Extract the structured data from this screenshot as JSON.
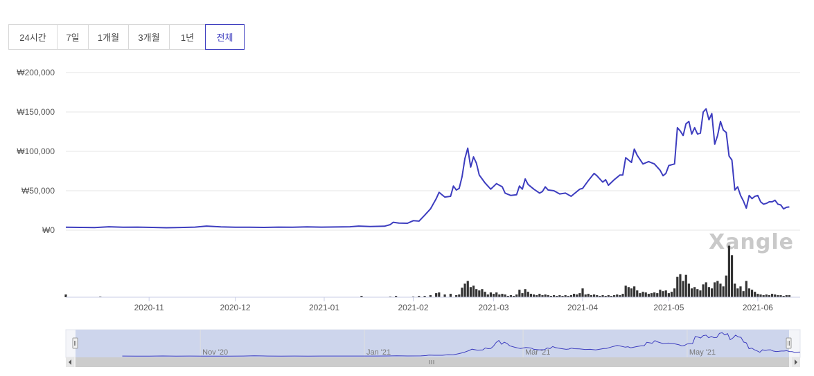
{
  "range_tabs": [
    {
      "label": "24시간",
      "active": false
    },
    {
      "label": "7일",
      "active": false
    },
    {
      "label": "1개월",
      "active": false
    },
    {
      "label": "3개월",
      "active": false
    },
    {
      "label": "1년",
      "active": false
    },
    {
      "label": "전체",
      "active": true
    }
  ],
  "watermark": "Xangle",
  "colors": {
    "price_line": "#3d3dbf",
    "volume_bar": "#333333",
    "navigator_fill": "#cdd5ec",
    "navigator_line": "#3d3dbf",
    "accent": "#3d3dbf"
  },
  "chart_data": {
    "type": "line",
    "y_axis": {
      "ticks": [
        0,
        50000,
        100000,
        150000,
        200000
      ],
      "tick_labels": [
        "₩0",
        "₩50,000",
        "₩100,000",
        "₩150,000",
        "₩200,000"
      ],
      "ylim": [
        0,
        200000
      ]
    },
    "x_axis": {
      "type": "date",
      "range": [
        "2020-10-03",
        "2021-06-09"
      ],
      "tick_labels": [
        "2020-11",
        "2020-12",
        "2021-01",
        "2021-02",
        "2021-03",
        "2021-04",
        "2021-05",
        "2021-06"
      ],
      "tick_dates": [
        "2020-11-01",
        "2020-12-01",
        "2021-01-01",
        "2021-02-01",
        "2021-03-01",
        "2021-04-01",
        "2021-05-01",
        "2021-06-01"
      ]
    },
    "series": [
      {
        "kind": "price",
        "points": [
          [
            "2020-10-03",
            3800
          ],
          [
            "2020-10-08",
            3500
          ],
          [
            "2020-10-13",
            3300
          ],
          [
            "2020-10-18",
            4300
          ],
          [
            "2020-10-23",
            3700
          ],
          [
            "2020-10-28",
            3900
          ],
          [
            "2020-11-02",
            3500
          ],
          [
            "2020-11-07",
            3100
          ],
          [
            "2020-11-12",
            3400
          ],
          [
            "2020-11-17",
            3900
          ],
          [
            "2020-11-21",
            5200
          ],
          [
            "2020-11-26",
            4100
          ],
          [
            "2020-12-01",
            3700
          ],
          [
            "2020-12-06",
            3800
          ],
          [
            "2020-12-11",
            3500
          ],
          [
            "2020-12-16",
            3900
          ],
          [
            "2020-12-21",
            3800
          ],
          [
            "2020-12-26",
            4100
          ],
          [
            "2020-12-31",
            3900
          ],
          [
            "2021-01-05",
            4000
          ],
          [
            "2021-01-10",
            4300
          ],
          [
            "2021-01-13",
            5200
          ],
          [
            "2021-01-17",
            4600
          ],
          [
            "2021-01-22",
            5000
          ],
          [
            "2021-01-24",
            7000
          ],
          [
            "2021-01-25",
            10000
          ],
          [
            "2021-01-27",
            9000
          ],
          [
            "2021-01-30",
            8800
          ],
          [
            "2021-02-01",
            12000
          ],
          [
            "2021-02-03",
            11500
          ],
          [
            "2021-02-05",
            19000
          ],
          [
            "2021-02-07",
            27000
          ],
          [
            "2021-02-09",
            40000
          ],
          [
            "2021-02-10",
            48000
          ],
          [
            "2021-02-12",
            42000
          ],
          [
            "2021-02-14",
            43000
          ],
          [
            "2021-02-15",
            56000
          ],
          [
            "2021-02-16",
            51000
          ],
          [
            "2021-02-17",
            53000
          ],
          [
            "2021-02-18",
            68000
          ],
          [
            "2021-02-19",
            91000
          ],
          [
            "2021-02-20",
            104000
          ],
          [
            "2021-02-21",
            80000
          ],
          [
            "2021-02-22",
            93000
          ],
          [
            "2021-02-23",
            85000
          ],
          [
            "2021-02-24",
            70000
          ],
          [
            "2021-02-26",
            60000
          ],
          [
            "2021-02-28",
            52000
          ],
          [
            "2021-03-02",
            59000
          ],
          [
            "2021-03-04",
            55000
          ],
          [
            "2021-03-05",
            47000
          ],
          [
            "2021-03-07",
            44000
          ],
          [
            "2021-03-09",
            45000
          ],
          [
            "2021-03-10",
            56000
          ],
          [
            "2021-03-11",
            52000
          ],
          [
            "2021-03-12",
            65000
          ],
          [
            "2021-03-13",
            58000
          ],
          [
            "2021-03-15",
            52000
          ],
          [
            "2021-03-17",
            47000
          ],
          [
            "2021-03-18",
            49000
          ],
          [
            "2021-03-19",
            55000
          ],
          [
            "2021-03-20",
            51000
          ],
          [
            "2021-03-22",
            50000
          ],
          [
            "2021-03-24",
            46000
          ],
          [
            "2021-03-26",
            47000
          ],
          [
            "2021-03-28",
            43000
          ],
          [
            "2021-03-31",
            52000
          ],
          [
            "2021-04-01",
            53000
          ],
          [
            "2021-04-03",
            63000
          ],
          [
            "2021-04-05",
            72000
          ],
          [
            "2021-04-06",
            69000
          ],
          [
            "2021-04-08",
            61000
          ],
          [
            "2021-04-09",
            64000
          ],
          [
            "2021-04-10",
            57000
          ],
          [
            "2021-04-12",
            64000
          ],
          [
            "2021-04-14",
            70000
          ],
          [
            "2021-04-15",
            70000
          ],
          [
            "2021-04-16",
            92000
          ],
          [
            "2021-04-18",
            86000
          ],
          [
            "2021-04-19",
            103000
          ],
          [
            "2021-04-20",
            95000
          ],
          [
            "2021-04-22",
            84000
          ],
          [
            "2021-04-24",
            87000
          ],
          [
            "2021-04-26",
            84000
          ],
          [
            "2021-04-28",
            76000
          ],
          [
            "2021-04-29",
            69000
          ],
          [
            "2021-04-30",
            72000
          ],
          [
            "2021-05-01",
            82000
          ],
          [
            "2021-05-03",
            84000
          ],
          [
            "2021-05-04",
            130000
          ],
          [
            "2021-05-05",
            126000
          ],
          [
            "2021-05-06",
            120000
          ],
          [
            "2021-05-07",
            135000
          ],
          [
            "2021-05-08",
            138000
          ],
          [
            "2021-05-09",
            122000
          ],
          [
            "2021-05-10",
            130000
          ],
          [
            "2021-05-11",
            122000
          ],
          [
            "2021-05-12",
            123000
          ],
          [
            "2021-05-13",
            150000
          ],
          [
            "2021-05-14",
            154000
          ],
          [
            "2021-05-15",
            140000
          ],
          [
            "2021-05-16",
            148000
          ],
          [
            "2021-05-17",
            109000
          ],
          [
            "2021-05-18",
            120000
          ],
          [
            "2021-05-19",
            138000
          ],
          [
            "2021-05-20",
            127000
          ],
          [
            "2021-05-21",
            124000
          ],
          [
            "2021-05-22",
            94000
          ],
          [
            "2021-05-23",
            89000
          ],
          [
            "2021-05-24",
            51000
          ],
          [
            "2021-05-25",
            55000
          ],
          [
            "2021-05-26",
            44000
          ],
          [
            "2021-05-27",
            37000
          ],
          [
            "2021-05-28",
            28000
          ],
          [
            "2021-05-29",
            44000
          ],
          [
            "2021-05-30",
            40000
          ],
          [
            "2021-05-31",
            43000
          ],
          [
            "2021-06-01",
            44000
          ],
          [
            "2021-06-02",
            36000
          ],
          [
            "2021-06-03",
            33000
          ],
          [
            "2021-06-04",
            34000
          ],
          [
            "2021-06-05",
            36000
          ],
          [
            "2021-06-06",
            36000
          ],
          [
            "2021-06-07",
            38000
          ],
          [
            "2021-06-08",
            33000
          ],
          [
            "2021-06-09",
            32000
          ],
          [
            "2021-06-10",
            27000
          ],
          [
            "2021-06-11",
            29000
          ],
          [
            "2021-06-12",
            29500
          ]
        ]
      },
      {
        "kind": "volume",
        "note_units": "relative bar height",
        "points": [
          [
            "2020-10-03",
            4
          ],
          [
            "2020-10-15",
            1
          ],
          [
            "2021-01-14",
            2
          ],
          [
            "2021-01-24",
            1
          ],
          [
            "2021-01-26",
            2
          ],
          [
            "2021-02-01",
            1
          ],
          [
            "2021-02-03",
            2
          ],
          [
            "2021-02-05",
            2
          ],
          [
            "2021-02-07",
            3
          ],
          [
            "2021-02-09",
            6
          ],
          [
            "2021-02-10",
            7
          ],
          [
            "2021-02-12",
            4
          ],
          [
            "2021-02-14",
            5
          ],
          [
            "2021-02-16",
            3
          ],
          [
            "2021-02-17",
            4
          ],
          [
            "2021-02-18",
            14
          ],
          [
            "2021-02-19",
            20
          ],
          [
            "2021-02-20",
            24
          ],
          [
            "2021-02-21",
            15
          ],
          [
            "2021-02-22",
            17
          ],
          [
            "2021-02-23",
            12
          ],
          [
            "2021-02-24",
            10
          ],
          [
            "2021-02-25",
            12
          ],
          [
            "2021-02-26",
            8
          ],
          [
            "2021-02-27",
            4
          ],
          [
            "2021-02-28",
            7
          ],
          [
            "2021-03-01",
            5
          ],
          [
            "2021-03-02",
            7
          ],
          [
            "2021-03-03",
            4
          ],
          [
            "2021-03-04",
            5
          ],
          [
            "2021-03-05",
            4
          ],
          [
            "2021-03-06",
            2
          ],
          [
            "2021-03-07",
            3
          ],
          [
            "2021-03-08",
            2
          ],
          [
            "2021-03-09",
            4
          ],
          [
            "2021-03-10",
            11
          ],
          [
            "2021-03-11",
            6
          ],
          [
            "2021-03-12",
            12
          ],
          [
            "2021-03-13",
            8
          ],
          [
            "2021-03-14",
            5
          ],
          [
            "2021-03-15",
            4
          ],
          [
            "2021-03-16",
            3
          ],
          [
            "2021-03-17",
            5
          ],
          [
            "2021-03-18",
            3
          ],
          [
            "2021-03-19",
            4
          ],
          [
            "2021-03-20",
            3
          ],
          [
            "2021-03-21",
            2
          ],
          [
            "2021-03-22",
            3
          ],
          [
            "2021-03-23",
            2
          ],
          [
            "2021-03-24",
            3
          ],
          [
            "2021-03-25",
            2
          ],
          [
            "2021-03-26",
            3
          ],
          [
            "2021-03-27",
            2
          ],
          [
            "2021-03-28",
            3
          ],
          [
            "2021-03-29",
            5
          ],
          [
            "2021-03-30",
            4
          ],
          [
            "2021-03-31",
            6
          ],
          [
            "2021-04-01",
            13
          ],
          [
            "2021-04-02",
            4
          ],
          [
            "2021-04-03",
            5
          ],
          [
            "2021-04-04",
            3
          ],
          [
            "2021-04-05",
            4
          ],
          [
            "2021-04-06",
            3
          ],
          [
            "2021-04-07",
            2
          ],
          [
            "2021-04-08",
            3
          ],
          [
            "2021-04-09",
            2
          ],
          [
            "2021-04-10",
            3
          ],
          [
            "2021-04-11",
            2
          ],
          [
            "2021-04-12",
            3
          ],
          [
            "2021-04-13",
            4
          ],
          [
            "2021-04-14",
            3
          ],
          [
            "2021-04-15",
            5
          ],
          [
            "2021-04-16",
            17
          ],
          [
            "2021-04-17",
            15
          ],
          [
            "2021-04-18",
            13
          ],
          [
            "2021-04-19",
            16
          ],
          [
            "2021-04-20",
            10
          ],
          [
            "2021-04-21",
            6
          ],
          [
            "2021-04-22",
            8
          ],
          [
            "2021-04-23",
            7
          ],
          [
            "2021-04-24",
            5
          ],
          [
            "2021-04-25",
            6
          ],
          [
            "2021-04-26",
            7
          ],
          [
            "2021-04-27",
            6
          ],
          [
            "2021-04-28",
            11
          ],
          [
            "2021-04-29",
            9
          ],
          [
            "2021-04-30",
            10
          ],
          [
            "2021-05-01",
            6
          ],
          [
            "2021-05-02",
            8
          ],
          [
            "2021-05-03",
            13
          ],
          [
            "2021-05-04",
            30
          ],
          [
            "2021-05-05",
            34
          ],
          [
            "2021-05-06",
            24
          ],
          [
            "2021-05-07",
            33
          ],
          [
            "2021-05-08",
            20
          ],
          [
            "2021-05-09",
            13
          ],
          [
            "2021-05-10",
            15
          ],
          [
            "2021-05-11",
            12
          ],
          [
            "2021-05-12",
            10
          ],
          [
            "2021-05-13",
            19
          ],
          [
            "2021-05-14",
            22
          ],
          [
            "2021-05-15",
            15
          ],
          [
            "2021-05-16",
            13
          ],
          [
            "2021-05-17",
            22
          ],
          [
            "2021-05-18",
            24
          ],
          [
            "2021-05-19",
            20
          ],
          [
            "2021-05-20",
            16
          ],
          [
            "2021-05-21",
            32
          ],
          [
            "2021-05-22",
            76
          ],
          [
            "2021-05-23",
            62
          ],
          [
            "2021-05-24",
            20
          ],
          [
            "2021-05-25",
            13
          ],
          [
            "2021-05-26",
            16
          ],
          [
            "2021-05-27",
            9
          ],
          [
            "2021-05-28",
            24
          ],
          [
            "2021-05-29",
            13
          ],
          [
            "2021-05-30",
            11
          ],
          [
            "2021-05-31",
            8
          ],
          [
            "2021-06-01",
            5
          ],
          [
            "2021-06-02",
            4
          ],
          [
            "2021-06-03",
            3
          ],
          [
            "2021-06-04",
            4
          ],
          [
            "2021-06-05",
            3
          ],
          [
            "2021-06-06",
            5
          ],
          [
            "2021-06-07",
            4
          ],
          [
            "2021-06-08",
            3
          ],
          [
            "2021-06-09",
            3
          ],
          [
            "2021-06-10",
            2
          ],
          [
            "2021-06-11",
            3
          ],
          [
            "2021-06-12",
            3
          ]
        ]
      }
    ],
    "navigator": {
      "range": [
        "2020-09-12",
        "2021-06-12"
      ],
      "tick_labels": [
        "Nov '20",
        "Jan '21",
        "Mar '21",
        "May '21"
      ],
      "tick_dates": [
        "2020-11-01",
        "2021-01-01",
        "2021-03-01",
        "2021-05-01"
      ]
    }
  }
}
